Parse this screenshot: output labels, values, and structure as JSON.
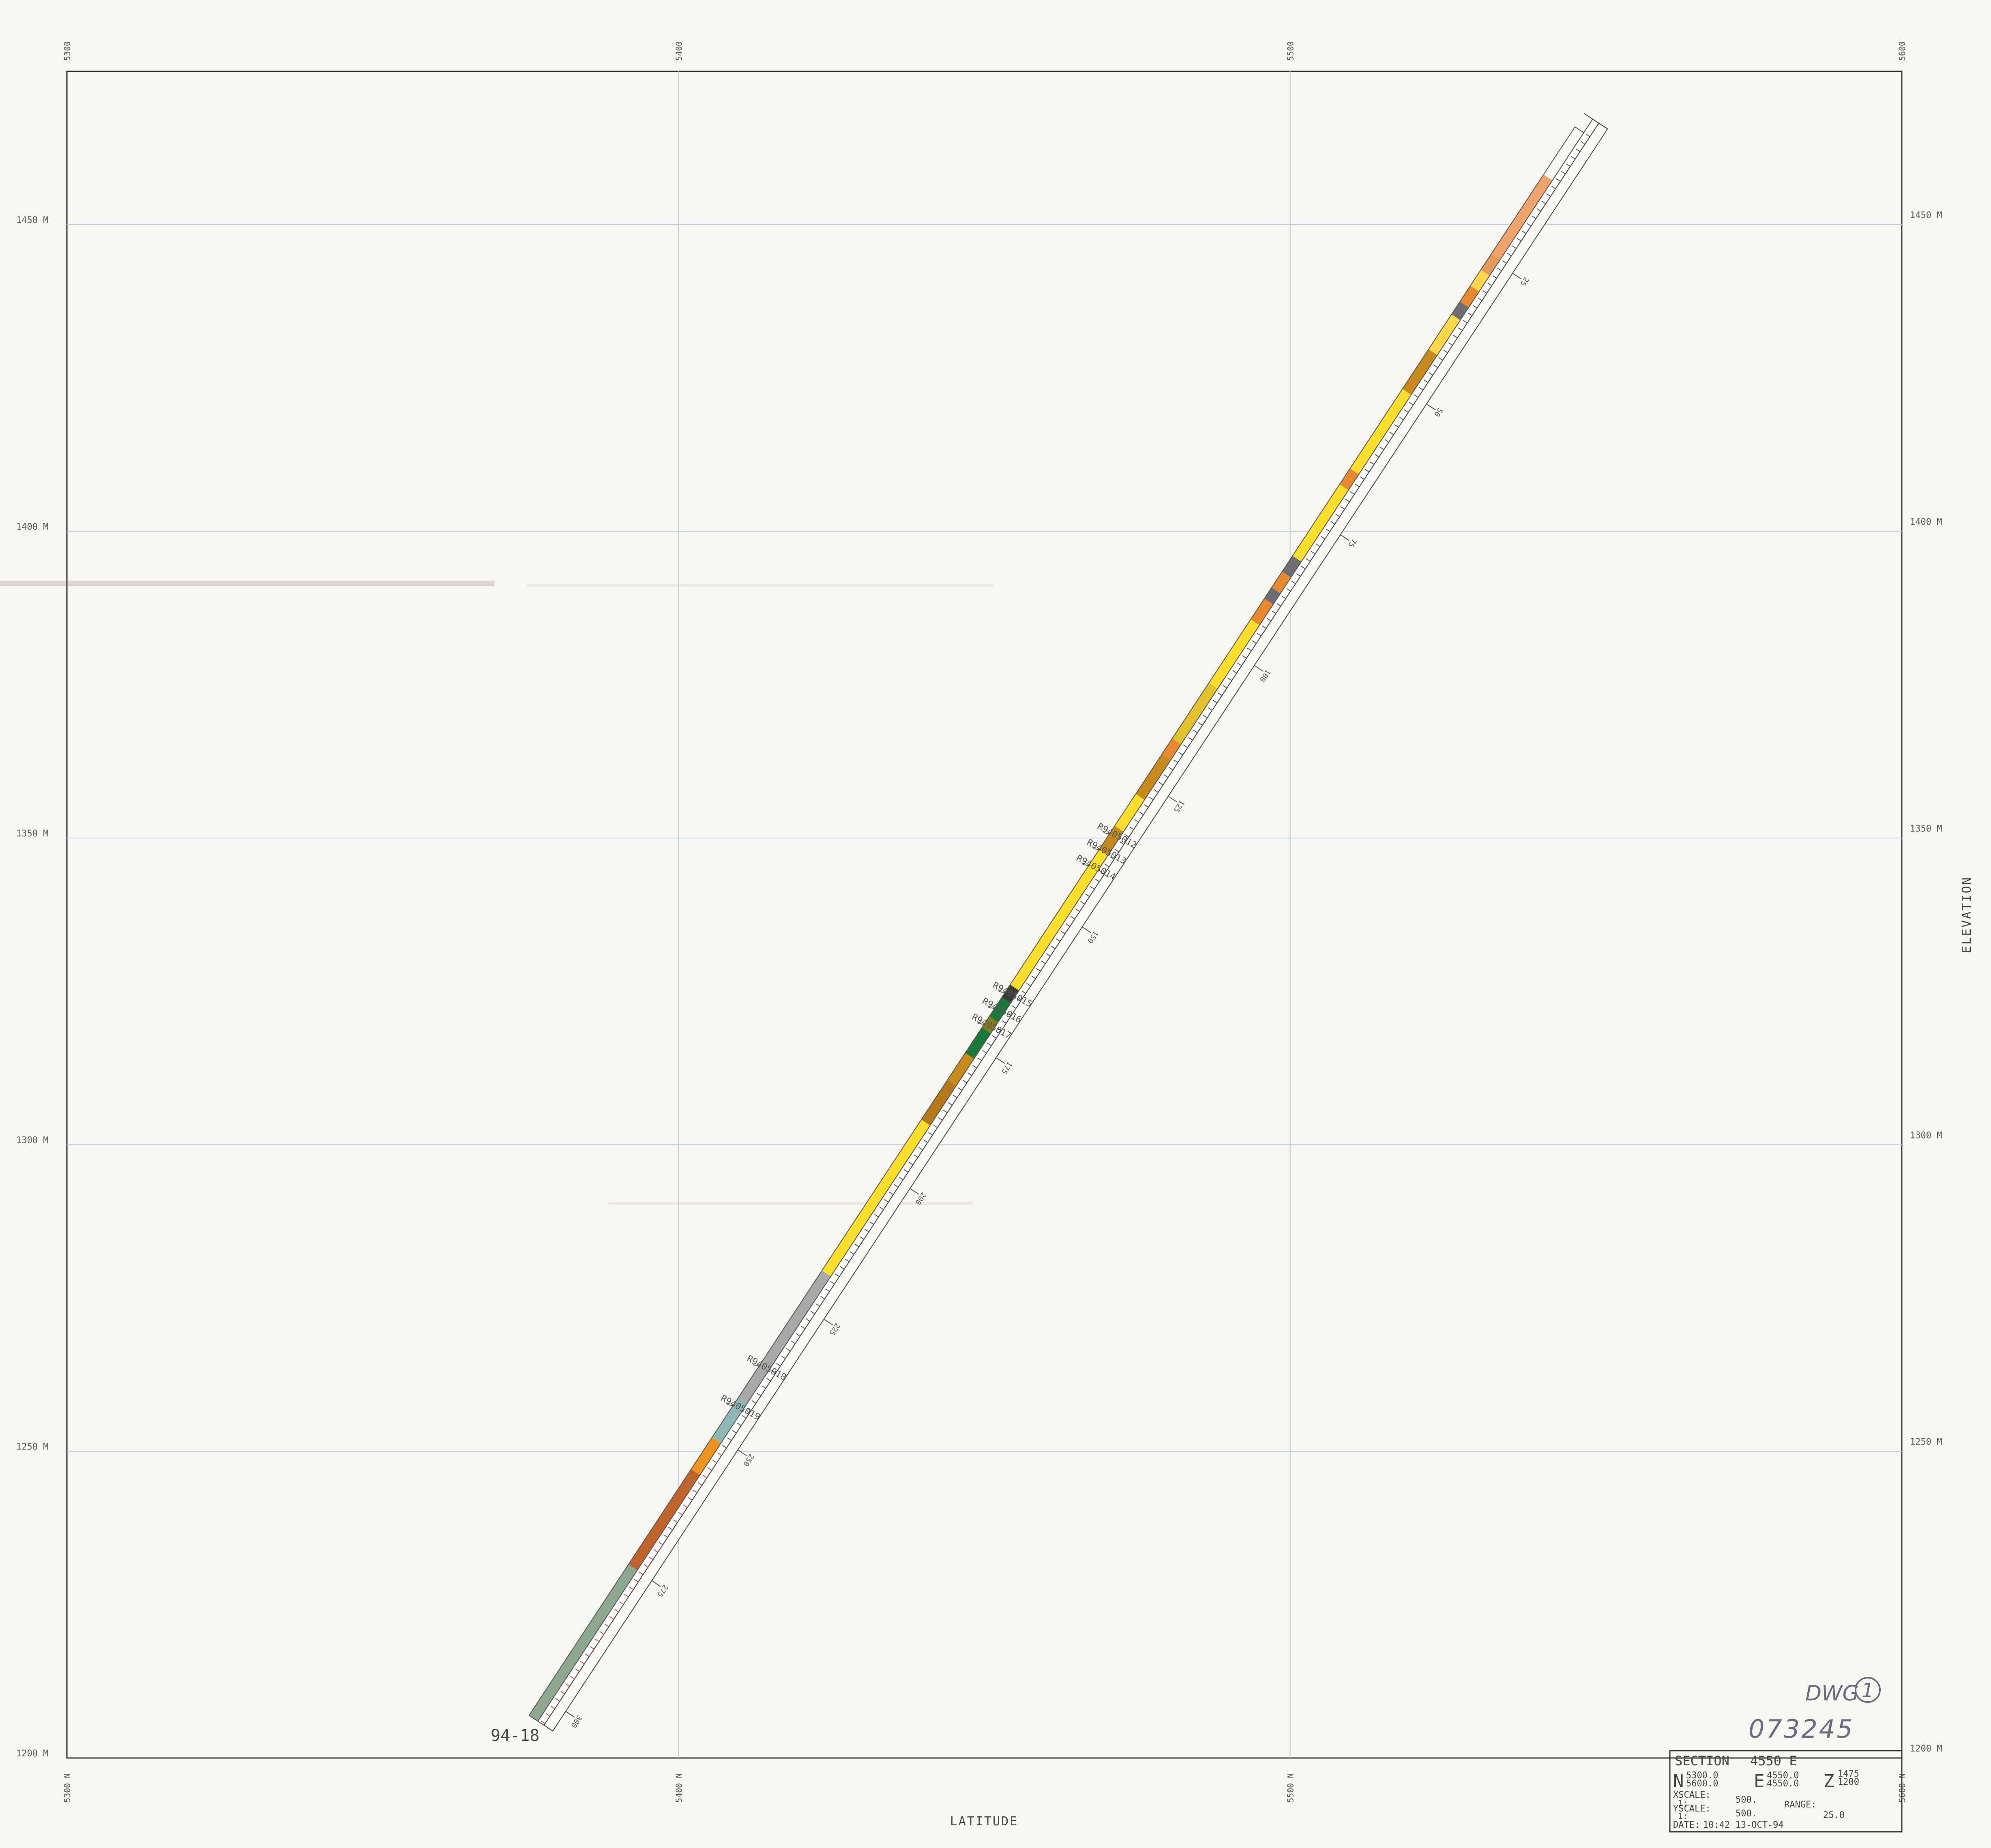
{
  "chart_data": {
    "type": "diagram",
    "x_axis": {
      "label": "LATITUDE",
      "ticks": [
        5300,
        5400,
        5500,
        5600
      ],
      "tick_labels": [
        "5300 N",
        "5400 N",
        "5500 N",
        "5600 N"
      ],
      "top_tick_labels": [
        "5300",
        "5400",
        "5500",
        "5600"
      ]
    },
    "y_axis": {
      "label": "ELEVATION",
      "ticks": [
        1450,
        1400,
        1350,
        1300,
        1250,
        1200
      ],
      "tick_labels": [
        "1450 M",
        "1400 M",
        "1350 M",
        "1300 M",
        "1250 M",
        "1200 M"
      ]
    },
    "xlim": [
      5300,
      5600
    ],
    "ylim": [
      1200,
      1475
    ],
    "drillhole": {
      "name": "94-18",
      "collar": {
        "n": 5548,
        "z": 1465
      },
      "toe": {
        "n": 5377,
        "z": 1206
      },
      "depth_labels": [
        "25",
        "50",
        "75",
        "100",
        "125",
        "150",
        "175",
        "200",
        "225",
        "250",
        "275",
        "300"
      ],
      "intervals": [
        {
          "from": 0.03,
          "to": 0.08,
          "color": "#f0a36a"
        },
        {
          "from": 0.08,
          "to": 0.09,
          "color": "#e59a5a"
        },
        {
          "from": 0.09,
          "to": 0.1,
          "color": "#ffd84a"
        },
        {
          "from": 0.1,
          "to": 0.11,
          "color": "#e8892e"
        },
        {
          "from": 0.11,
          "to": 0.118,
          "color": "#6e6e72"
        },
        {
          "from": 0.118,
          "to": 0.14,
          "color": "#ffd84a"
        },
        {
          "from": 0.14,
          "to": 0.165,
          "color": "#c98a1c"
        },
        {
          "from": 0.165,
          "to": 0.215,
          "color": "#ffdf2c"
        },
        {
          "from": 0.215,
          "to": 0.225,
          "color": "#e8892e"
        },
        {
          "from": 0.225,
          "to": 0.27,
          "color": "#ffdf2c"
        },
        {
          "from": 0.27,
          "to": 0.28,
          "color": "#6e6e72"
        },
        {
          "from": 0.28,
          "to": 0.29,
          "color": "#e8892e"
        },
        {
          "from": 0.29,
          "to": 0.297,
          "color": "#6e6e72"
        },
        {
          "from": 0.297,
          "to": 0.31,
          "color": "#e8892e"
        },
        {
          "from": 0.31,
          "to": 0.35,
          "color": "#ffdf2c"
        },
        {
          "from": 0.35,
          "to": 0.385,
          "color": "#e3c12a"
        },
        {
          "from": 0.385,
          "to": 0.395,
          "color": "#e8892e"
        },
        {
          "from": 0.395,
          "to": 0.42,
          "color": "#c98a1c"
        },
        {
          "from": 0.42,
          "to": 0.44,
          "color": "#ffdf2c"
        },
        {
          "from": 0.44,
          "to": 0.455,
          "color": "#c98a1c"
        },
        {
          "from": 0.455,
          "to": 0.54,
          "color": "#ffdf2c"
        },
        {
          "from": 0.54,
          "to": 0.548,
          "color": "#3b3b3b"
        },
        {
          "from": 0.548,
          "to": 0.56,
          "color": "#1a7a3a"
        },
        {
          "from": 0.56,
          "to": 0.567,
          "color": "#8a7a20"
        },
        {
          "from": 0.567,
          "to": 0.583,
          "color": "#1a7a3a"
        },
        {
          "from": 0.583,
          "to": 0.6,
          "color": "#c98a1c"
        },
        {
          "from": 0.6,
          "to": 0.625,
          "color": "#b5791a"
        },
        {
          "from": 0.625,
          "to": 0.72,
          "color": "#ffdf2c"
        },
        {
          "from": 0.72,
          "to": 0.8,
          "color": "#a8a8a8"
        },
        {
          "from": 0.8,
          "to": 0.825,
          "color": "#8fb7b5"
        },
        {
          "from": 0.825,
          "to": 0.845,
          "color": "#f0941e"
        },
        {
          "from": 0.845,
          "to": 0.905,
          "color": "#c0642c"
        },
        {
          "from": 0.905,
          "to": 1.0,
          "color": "#8ea890"
        }
      ],
      "samples": [
        "R9405012",
        "R9405013",
        "R9405014",
        "R9405015",
        "R9405016",
        "R9405017",
        "R9405018",
        "R9405019"
      ]
    }
  },
  "title_block": {
    "section_label": "SECTION",
    "section_value": "4550 E",
    "n_label": "N",
    "n_from": "5300.0",
    "n_to": "5600.0",
    "e_label": "E",
    "e_from": "4550.0",
    "e_to": "4550.0",
    "z_label": "Z",
    "z_from": "1475",
    "z_to": "1200",
    "xscale_label": "XSCALE:",
    "xscale_num": "1:",
    "xscale_value": "500.",
    "yscale_label": "YSCALE:",
    "yscale_num": "1:",
    "yscale_value": "500.",
    "range_label": "RANGE:",
    "range_value": "25.0",
    "date_label": "DATE:",
    "date_value": "10:42 13-OCT-94"
  },
  "annotations": {
    "dwg": "DWG",
    "dwg_num": "1",
    "drawing_number": "073245"
  }
}
